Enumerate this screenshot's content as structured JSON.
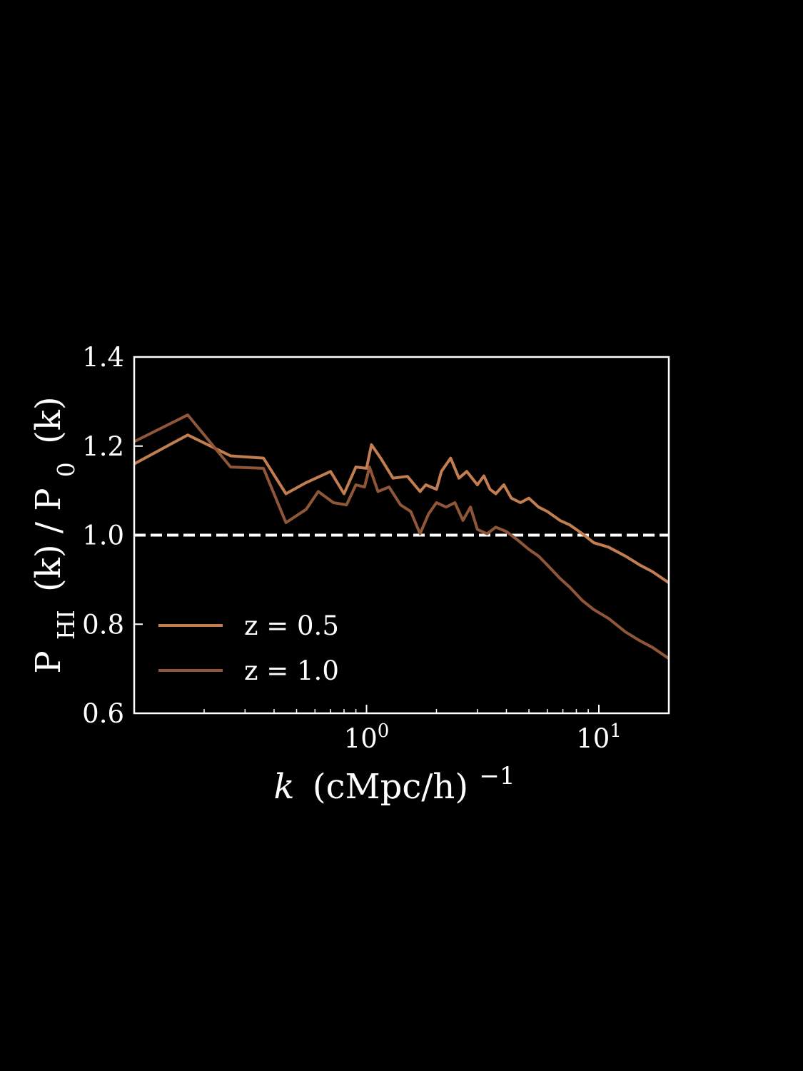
{
  "chart_data": {
    "type": "line",
    "xscale": "log",
    "xlim": [
      0.1,
      20
    ],
    "ylim": [
      0.6,
      1.4
    ],
    "yticks": [
      "0.6",
      "0.8",
      "1.0",
      "1.2",
      "1.4"
    ],
    "xticks": [
      {
        "base": "10",
        "exp": "0",
        "value": 1
      },
      {
        "base": "10",
        "exp": "1",
        "value": 10
      }
    ],
    "xlabel": {
      "var": "k",
      "text": "(cMpc/h)",
      "exp": "−1"
    },
    "ylabel": {
      "p1": "P",
      "sub1": "HI",
      "mid": "(k) / P",
      "sub2": "0",
      "end": "(k)"
    },
    "reference_line": {
      "y": 1.0,
      "style": "dashed",
      "color": "#ffffff"
    },
    "legend_position": "lower-left",
    "colors": {
      "background": "#000000",
      "axes": "#ffffff"
    },
    "series": [
      {
        "name": "z = 0.5",
        "color": "#c27e50",
        "x": [
          0.1,
          0.17,
          0.26,
          0.36,
          0.45,
          0.55,
          0.7,
          0.8,
          0.9,
          1.0,
          1.05,
          1.15,
          1.3,
          1.5,
          1.7,
          1.8,
          2.0,
          2.1,
          2.3,
          2.5,
          2.7,
          3.0,
          3.2,
          3.4,
          3.6,
          3.9,
          4.2,
          4.6,
          5.0,
          5.5,
          6.0,
          6.8,
          7.5,
          8.5,
          9.5,
          11,
          13,
          15,
          17,
          20
        ],
        "y": [
          1.16,
          1.225,
          1.178,
          1.173,
          1.093,
          1.118,
          1.143,
          1.093,
          1.153,
          1.15,
          1.203,
          1.173,
          1.128,
          1.132,
          1.098,
          1.113,
          1.103,
          1.143,
          1.173,
          1.128,
          1.143,
          1.113,
          1.133,
          1.103,
          1.093,
          1.113,
          1.083,
          1.073,
          1.083,
          1.063,
          1.053,
          1.033,
          1.023,
          1.003,
          0.983,
          0.973,
          0.953,
          0.933,
          0.918,
          0.893
        ]
      },
      {
        "name": "z = 1.0",
        "color": "#8f5638",
        "x": [
          0.1,
          0.17,
          0.26,
          0.36,
          0.45,
          0.55,
          0.62,
          0.72,
          0.82,
          0.9,
          0.98,
          1.03,
          1.12,
          1.25,
          1.4,
          1.55,
          1.7,
          1.85,
          2.0,
          2.2,
          2.4,
          2.6,
          2.8,
          3.0,
          3.3,
          3.6,
          4.0,
          4.5,
          5.0,
          5.5,
          6.0,
          6.8,
          7.5,
          8.5,
          9.5,
          11,
          13,
          15,
          17,
          20
        ],
        "y": [
          1.21,
          1.27,
          1.153,
          1.15,
          1.028,
          1.058,
          1.098,
          1.073,
          1.068,
          1.113,
          1.108,
          1.153,
          1.098,
          1.108,
          1.068,
          1.053,
          1.003,
          1.048,
          1.073,
          1.063,
          1.073,
          1.033,
          1.063,
          1.013,
          1.003,
          1.018,
          1.008,
          0.988,
          0.968,
          0.953,
          0.933,
          0.903,
          0.883,
          0.853,
          0.833,
          0.813,
          0.783,
          0.763,
          0.748,
          0.723
        ]
      }
    ]
  }
}
